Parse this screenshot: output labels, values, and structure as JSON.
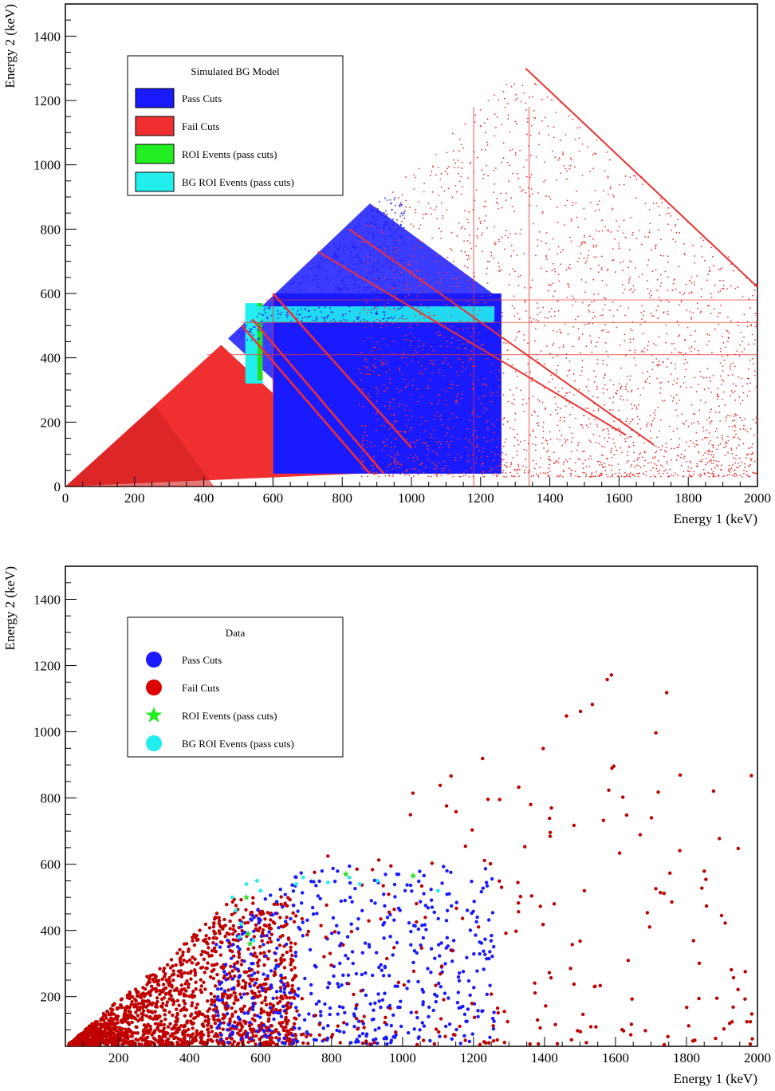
{
  "colors": {
    "pass": "#1a1aff",
    "fail_sim": "#f03030",
    "fail_data": "#c00000",
    "roi": "#22dd22",
    "bg_roi": "#22eeee",
    "axis": "#000000"
  },
  "chart_data": [
    {
      "type": "scatter",
      "xlabel": "Energy 1 (keV)",
      "ylabel": "Energy 2 (keV)",
      "xlim": [
        0,
        2000
      ],
      "ylim": [
        0,
        1500
      ],
      "xticks": [
        "0",
        "200",
        "400",
        "600",
        "800",
        "1000",
        "1200",
        "1400",
        "1600",
        "1800",
        "2000"
      ],
      "yticks": [
        "0",
        "200",
        "400",
        "600",
        "800",
        "1000",
        "1200",
        "1400"
      ],
      "legend": {
        "title": "Simulated BG Model",
        "placement": "top-left",
        "entries": [
          {
            "label": "Pass Cuts",
            "color": "#1a1aff",
            "marker": "box"
          },
          {
            "label": "Fail Cuts",
            "color": "#f03030",
            "marker": "box"
          },
          {
            "label": "ROI Events (pass cuts)",
            "color": "#22ee22",
            "marker": "box"
          },
          {
            "label": "BG ROI Events (pass cuts)",
            "color": "#22eeee",
            "marker": "box"
          }
        ]
      },
      "regions": {
        "fail_triangle_vertices": [
          [
            0,
            0
          ],
          [
            450,
            440
          ],
          [
            850,
            40
          ]
        ],
        "pass_band_vertices": [
          [
            470,
            460
          ],
          [
            880,
            880
          ],
          [
            1260,
            580
          ],
          [
            1260,
            40
          ],
          [
            900,
            40
          ]
        ],
        "pass_box": [
          [
            600,
            40
          ],
          [
            1260,
            600
          ]
        ],
        "roi_box": [
          [
            520,
            320
          ],
          [
            570,
            570
          ]
        ],
        "bg_roi_box": [
          [
            520,
            510
          ],
          [
            1240,
            560
          ]
        ],
        "fail_upper_triangle": [
          [
            900,
            900
          ],
          [
            1330,
            1300
          ],
          [
            2000,
            620
          ],
          [
            2000,
            0
          ],
          [
            1260,
            0
          ]
        ],
        "compton_lines": [
          [
            [
              730,
              730
            ],
            [
              1620,
              160
            ]
          ],
          [
            [
              820,
              800
            ],
            [
              1700,
              130
            ]
          ],
          [
            [
              1330,
              1300
            ],
            [
              2000,
              620
            ]
          ]
        ]
      }
    },
    {
      "type": "scatter",
      "xlabel": "Energy 1 (keV)",
      "ylabel": "Energy 2 (keV)",
      "xlim": [
        50,
        2000
      ],
      "ylim": [
        50,
        1500
      ],
      "xticks": [
        "200",
        "400",
        "600",
        "800",
        "1000",
        "1200",
        "1400",
        "1600",
        "1800",
        "2000"
      ],
      "yticks": [
        "200",
        "400",
        "600",
        "800",
        "1000",
        "1200",
        "1400"
      ],
      "legend": {
        "title": "Data",
        "placement": "top-left",
        "entries": [
          {
            "label": "Pass Cuts",
            "color": "#1a1aff",
            "marker": "circle"
          },
          {
            "label": "Fail Cuts",
            "color": "#dd0000",
            "marker": "circle"
          },
          {
            "label": "ROI Events (pass cuts)",
            "color": "#22ee22",
            "marker": "star"
          },
          {
            "label": "BG ROI Events (pass cuts)",
            "color": "#22eeee",
            "marker": "circle"
          }
        ]
      },
      "highlighted_points": {
        "roi": [
          [
            560,
            500
          ],
          [
            565,
            390
          ],
          [
            570,
            360
          ],
          [
            840,
            570
          ],
          [
            1030,
            565
          ]
        ],
        "bg_roi": [
          [
            520,
            500
          ],
          [
            530,
            460
          ],
          [
            545,
            420
          ],
          [
            560,
            540
          ],
          [
            590,
            550
          ],
          [
            600,
            520
          ],
          [
            700,
            540
          ],
          [
            720,
            560
          ],
          [
            790,
            545
          ],
          [
            850,
            560
          ],
          [
            880,
            540
          ],
          [
            930,
            550
          ],
          [
            1100,
            520
          ],
          [
            540,
            380
          ],
          [
            580,
            370
          ]
        ]
      }
    }
  ]
}
